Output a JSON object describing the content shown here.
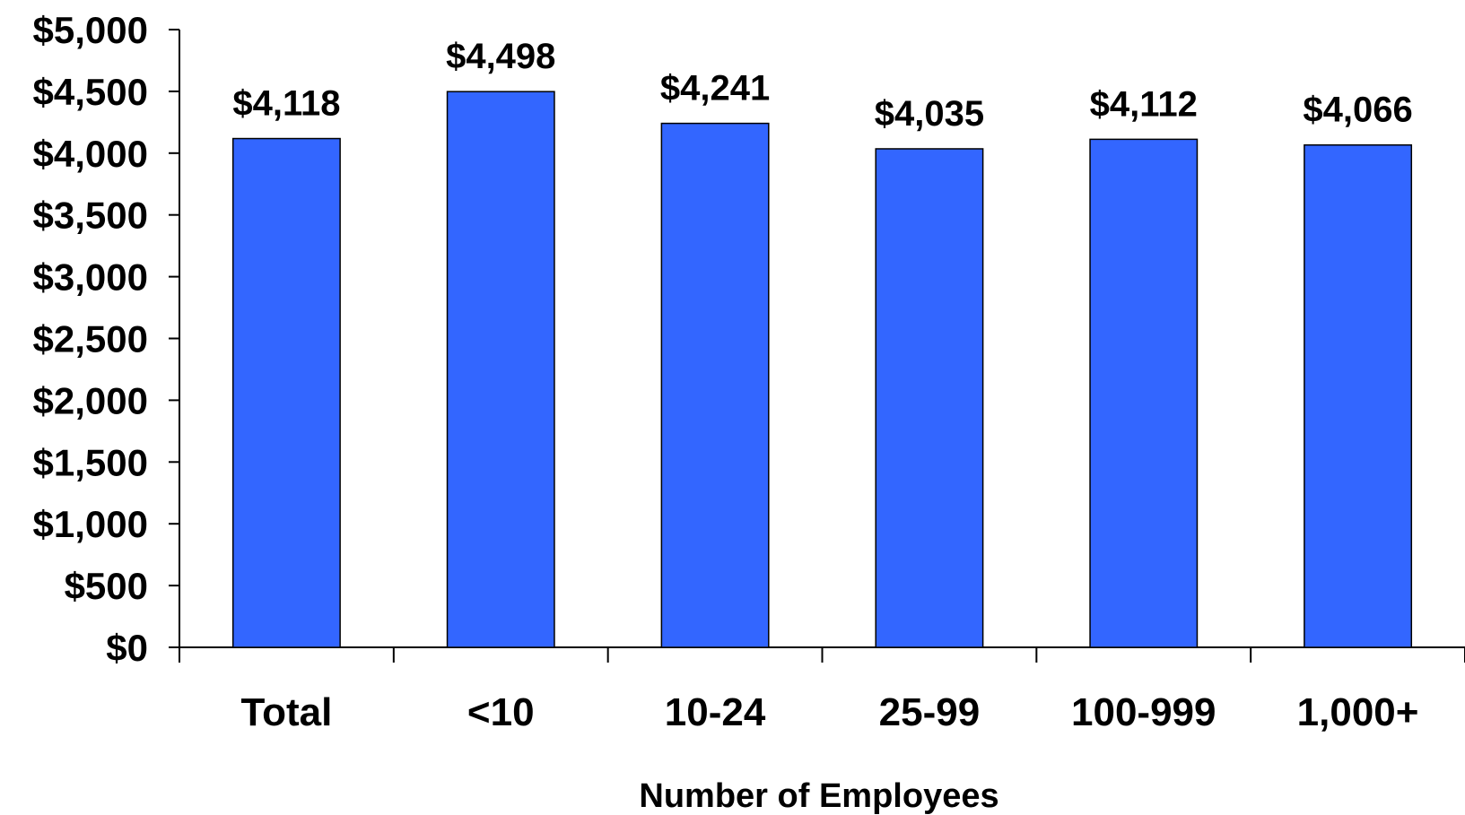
{
  "chart_data": {
    "type": "bar",
    "title": "",
    "xlabel": "Number of Employees",
    "ylabel": "",
    "categories": [
      "Total",
      "<10",
      "10-24",
      "25-99",
      "100-999",
      "1,000+"
    ],
    "values": [
      4118,
      4498,
      4241,
      4035,
      4112,
      4066
    ],
    "value_labels": [
      "$4,118",
      "$4,498",
      "$4,241",
      "$4,035",
      "$4,112",
      "$4,066"
    ],
    "ylim": [
      0,
      5000
    ],
    "yticks": [
      0,
      500,
      1000,
      1500,
      2000,
      2500,
      3000,
      3500,
      4000,
      4500,
      5000
    ],
    "ytick_labels": [
      "$0",
      "$500",
      "$1,000",
      "$1,500",
      "$2,000",
      "$2,500",
      "$3,000",
      "$3,500",
      "$4,000",
      "$4,500",
      "$5,000"
    ],
    "grid": false,
    "legend": "none",
    "bar_color": "#3366ff"
  }
}
